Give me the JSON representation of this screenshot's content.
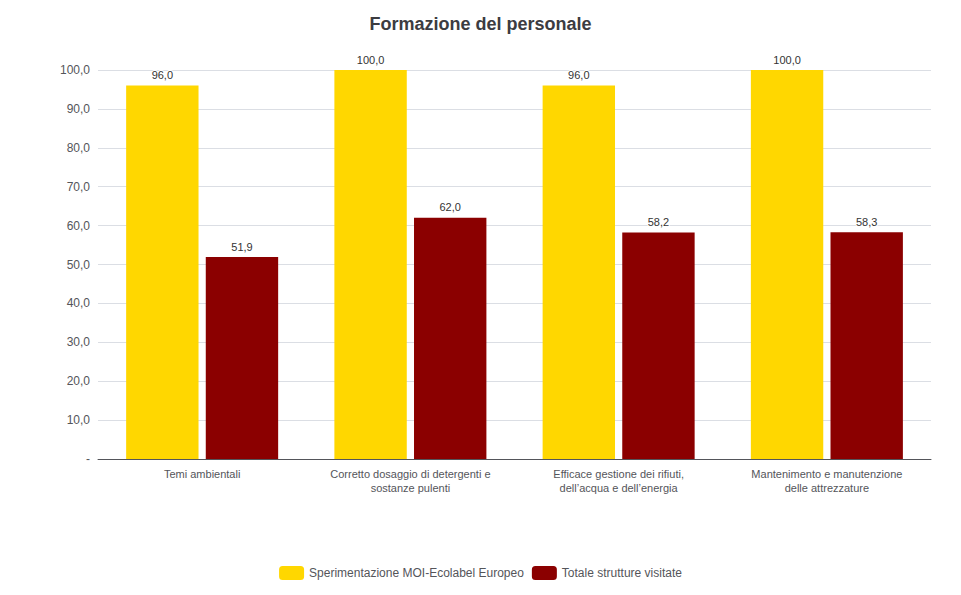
{
  "chart_data": {
    "type": "bar",
    "title": "Formazione del personale",
    "categories": [
      "Temi ambientali",
      "Corretto dosaggio di detergenti e\nsostanze pulenti",
      "Efficace gestione dei rifiuti,\ndell’acqua e dell’energia",
      "Mantenimento e manutenzione\ndelle attrezzature"
    ],
    "series": [
      {
        "name": "Sperimentazione MOI-Ecolabel Europeo",
        "color": "#FFD700",
        "values": [
          96.0,
          100.0,
          96.0,
          100.0
        ],
        "value_labels": [
          "96,0",
          "100,0",
          "96,0",
          "100,0"
        ]
      },
      {
        "name": "Totale strutture visitate",
        "color": "#8B0000",
        "values": [
          51.9,
          62.0,
          58.2,
          58.3
        ],
        "value_labels": [
          "51,9",
          "62,0",
          "58,2",
          "58,3"
        ]
      }
    ],
    "ylim": [
      0,
      100
    ],
    "yticks": [
      {
        "value": 0,
        "label": "-"
      },
      {
        "value": 10.0,
        "label": "10,0"
      },
      {
        "value": 20.0,
        "label": "20,0"
      },
      {
        "value": 30.0,
        "label": "30,0"
      },
      {
        "value": 40.0,
        "label": "40,0"
      },
      {
        "value": 50.0,
        "label": "50,0"
      },
      {
        "value": 60.0,
        "label": "60,0"
      },
      {
        "value": 70.0,
        "label": "70,0"
      },
      {
        "value": 80.0,
        "label": "80,0"
      },
      {
        "value": 90.0,
        "label": "90,0"
      },
      {
        "value": 100.0,
        "label": "100,0"
      }
    ],
    "grid": true,
    "legend": "bottom",
    "data_labels": true
  }
}
